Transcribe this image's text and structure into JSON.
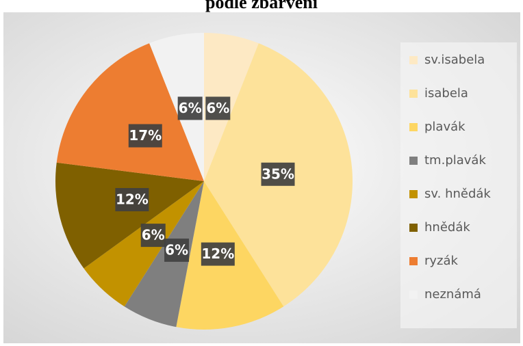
{
  "chart_data": {
    "type": "pie",
    "title": "podle zbarvení",
    "categories": [
      "sv.isabela",
      "isabela",
      "plavák",
      "tm.plavák",
      "sv. hnědák",
      "hnědák",
      "ryzák",
      "neznámá"
    ],
    "values": [
      6,
      35,
      12,
      6,
      6,
      12,
      17,
      6
    ],
    "value_labels": [
      "6%",
      "35%",
      "12%",
      "6%",
      "6%",
      "12%",
      "17%",
      "6%"
    ],
    "colors": [
      "#fde9c4",
      "#fde29a",
      "#fdd662",
      "#7f7f7f",
      "#c29200",
      "#7f6000",
      "#ed7d31",
      "#f2f2f2"
    ],
    "legend": "right"
  }
}
